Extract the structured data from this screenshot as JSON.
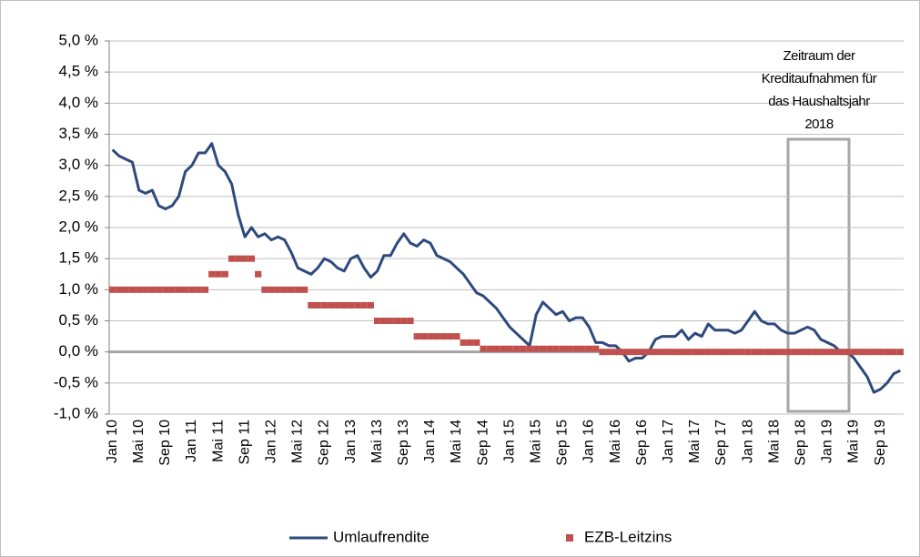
{
  "chart_data": {
    "type": "line",
    "categories": [
      "Jan 10",
      null,
      null,
      null,
      "Mai 10",
      null,
      null,
      null,
      "Sep 10",
      null,
      null,
      null,
      "Jan 11",
      null,
      null,
      null,
      "Mai 11",
      null,
      null,
      null,
      "Sep 11",
      null,
      null,
      null,
      "Jan 12",
      null,
      null,
      null,
      "Mai 12",
      null,
      null,
      null,
      "Sep 12",
      null,
      null,
      null,
      "Jan 13",
      null,
      null,
      null,
      "Mai 13",
      null,
      null,
      null,
      "Sep 13",
      null,
      null,
      null,
      "Jan 14",
      null,
      null,
      null,
      "Mai 14",
      null,
      null,
      null,
      "Sep 14",
      null,
      null,
      null,
      "Jan 15",
      null,
      null,
      null,
      "Mai 15",
      null,
      null,
      null,
      "Sep 15",
      null,
      null,
      null,
      "Jan 16",
      null,
      null,
      null,
      "Mai 16",
      null,
      null,
      null,
      "Sep 16",
      null,
      null,
      null,
      "Jan 17",
      null,
      null,
      null,
      "Mai 17",
      null,
      null,
      null,
      "Sep 17",
      null,
      null,
      null,
      "Jan 18",
      null,
      null,
      null,
      "Mai 18",
      null,
      null,
      null,
      "Sep 18",
      null,
      null,
      null,
      "Jan 19",
      null,
      null,
      null,
      "Mai 19",
      null,
      null,
      null,
      "Sep 19",
      null,
      null,
      null
    ],
    "series": [
      {
        "name": "Umlaufrendite",
        "color": "#2e4a7d",
        "linestyle": "solid",
        "values": [
          3.25,
          3.15,
          3.1,
          3.05,
          2.6,
          2.55,
          2.6,
          2.35,
          2.3,
          2.35,
          2.5,
          2.9,
          3.0,
          3.2,
          3.2,
          3.35,
          3.0,
          2.9,
          2.7,
          2.2,
          1.85,
          2.0,
          1.85,
          1.9,
          1.8,
          1.85,
          1.8,
          1.6,
          1.35,
          1.3,
          1.25,
          1.35,
          1.5,
          1.45,
          1.35,
          1.3,
          1.5,
          1.55,
          1.35,
          1.2,
          1.3,
          1.55,
          1.55,
          1.75,
          1.9,
          1.75,
          1.7,
          1.8,
          1.75,
          1.55,
          1.5,
          1.45,
          1.35,
          1.25,
          1.1,
          0.95,
          0.9,
          0.8,
          0.7,
          0.55,
          0.4,
          0.3,
          0.2,
          0.1,
          0.6,
          0.8,
          0.7,
          0.6,
          0.65,
          0.5,
          0.55,
          0.55,
          0.4,
          0.15,
          0.15,
          0.1,
          0.1,
          0.0,
          -0.15,
          -0.1,
          -0.1,
          0.0,
          0.2,
          0.25,
          0.25,
          0.25,
          0.35,
          0.2,
          0.3,
          0.25,
          0.45,
          0.35,
          0.35,
          0.35,
          0.3,
          0.35,
          0.5,
          0.65,
          0.5,
          0.45,
          0.45,
          0.35,
          0.3,
          0.3,
          0.35,
          0.4,
          0.35,
          0.2,
          0.15,
          0.1,
          0.0,
          0.0,
          -0.1,
          -0.25,
          -0.4,
          -0.65,
          -0.6,
          -0.5,
          -0.35,
          -0.3
        ]
      },
      {
        "name": "EZB-Leitzins",
        "color": "#c0504d",
        "linestyle": "dashed",
        "values": [
          1.0,
          1.0,
          1.0,
          1.0,
          1.0,
          1.0,
          1.0,
          1.0,
          1.0,
          1.0,
          1.0,
          1.0,
          1.0,
          1.0,
          1.0,
          1.25,
          1.25,
          1.25,
          1.5,
          1.5,
          1.5,
          1.5,
          1.25,
          1.0,
          1.0,
          1.0,
          1.0,
          1.0,
          1.0,
          1.0,
          0.75,
          0.75,
          0.75,
          0.75,
          0.75,
          0.75,
          0.75,
          0.75,
          0.75,
          0.75,
          0.5,
          0.5,
          0.5,
          0.5,
          0.5,
          0.5,
          0.25,
          0.25,
          0.25,
          0.25,
          0.25,
          0.25,
          0.25,
          0.15,
          0.15,
          0.15,
          0.05,
          0.05,
          0.05,
          0.05,
          0.05,
          0.05,
          0.05,
          0.05,
          0.05,
          0.05,
          0.05,
          0.05,
          0.05,
          0.05,
          0.05,
          0.05,
          0.05,
          0.05,
          0,
          0,
          0,
          0,
          0,
          0,
          0,
          0,
          0,
          0,
          0,
          0,
          0,
          0,
          0,
          0,
          0,
          0,
          0,
          0,
          0,
          0,
          0,
          0,
          0,
          0,
          0,
          0,
          0,
          0,
          0,
          0,
          0,
          0,
          0,
          0,
          0,
          0,
          0,
          0,
          0,
          0,
          0,
          0,
          0,
          0
        ]
      }
    ],
    "ylim": [
      -1,
      5
    ],
    "yticks": [
      {
        "value": -1,
        "label": "-1,0 %"
      },
      {
        "value": -0.5,
        "label": "-0,5 %"
      },
      {
        "value": 0,
        "label": "0,0 %"
      },
      {
        "value": 0.5,
        "label": "0,5 %"
      },
      {
        "value": 1,
        "label": "1,0 %"
      },
      {
        "value": 1.5,
        "label": "1,5 %"
      },
      {
        "value": 2,
        "label": "2,0 %"
      },
      {
        "value": 2.5,
        "label": "2,5 %"
      },
      {
        "value": 3,
        "label": "3,0 %"
      },
      {
        "value": 3.5,
        "label": "3,5 %"
      },
      {
        "value": 4,
        "label": "4,0 %"
      },
      {
        "value": 4.5,
        "label": "4,5 %"
      },
      {
        "value": 5,
        "label": "5,0 %"
      }
    ],
    "grid": true,
    "legend": "bottom",
    "annotation": [
      "Zeitraum der",
      "Kreditaufnahmen für",
      "das Haushaltsjahr",
      "2018"
    ]
  }
}
